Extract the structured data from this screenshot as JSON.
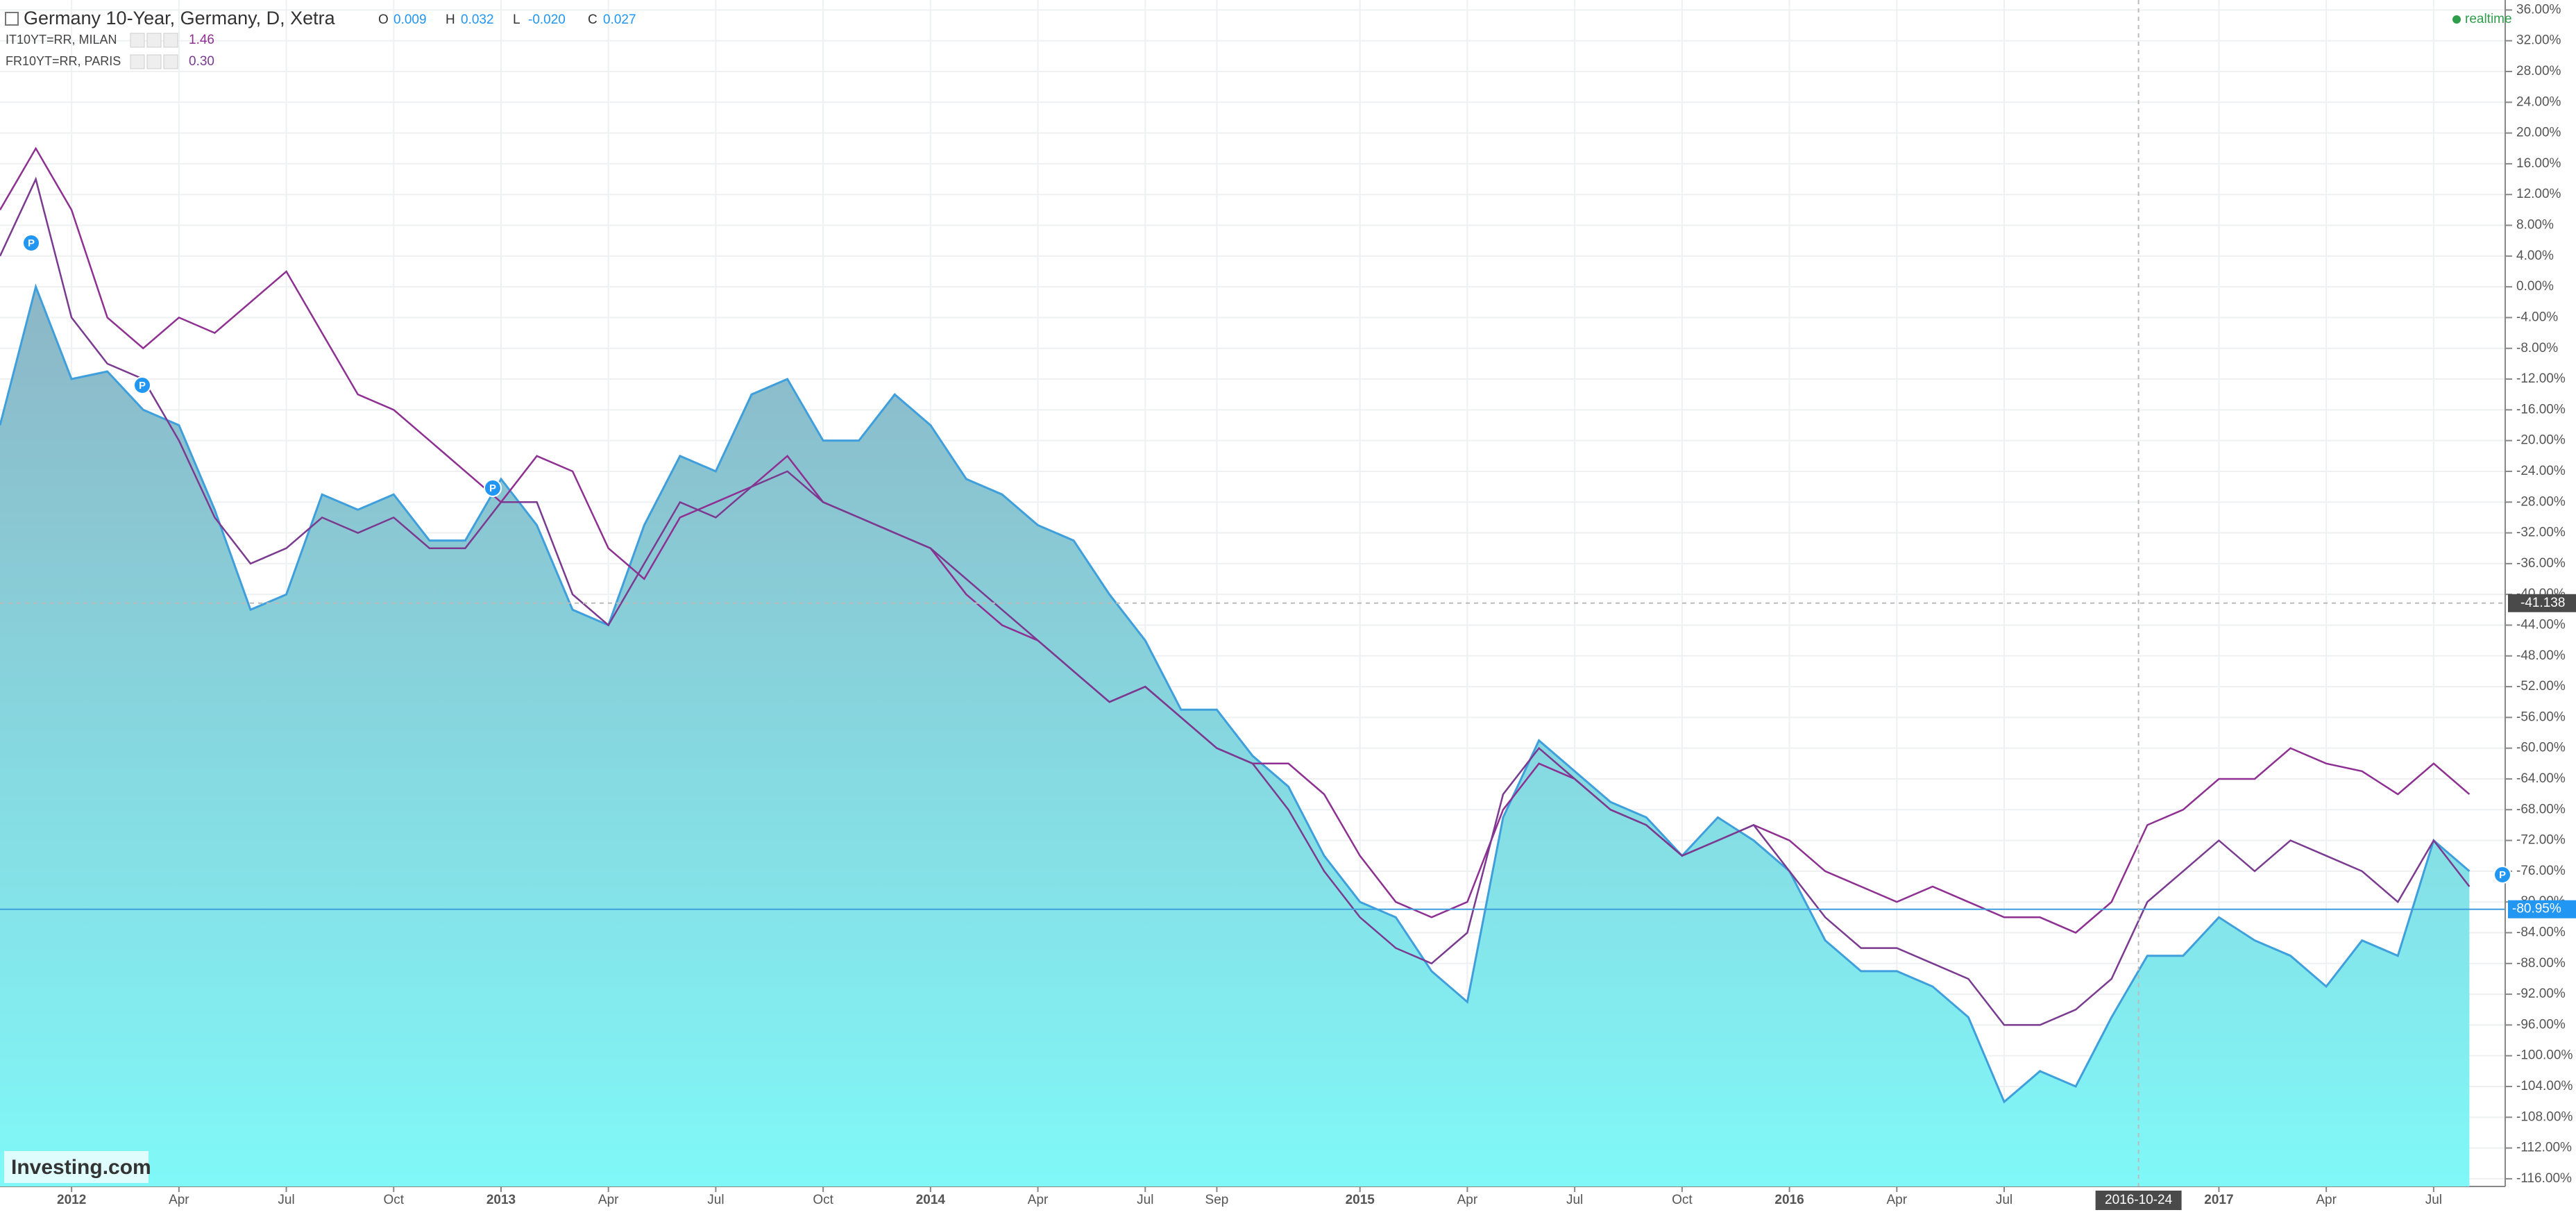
{
  "chart_data": {
    "type": "area-line",
    "header": {
      "title": "Germany 10-Year, Germany, D, Xetra",
      "ohlc": [
        {
          "label": "O",
          "value": "0.009"
        },
        {
          "label": "H",
          "value": "0.032"
        },
        {
          "label": "L",
          "value": "-0.020"
        },
        {
          "label": "C",
          "value": "0.027"
        }
      ],
      "status": "realtime"
    },
    "logo": "Investing.com",
    "event_marker_label": "P",
    "x": [
      "2011-11",
      "2011-12",
      "2012-01",
      "2012-02",
      "2012-03",
      "2012-04",
      "2012-05",
      "2012-06",
      "2012-07",
      "2012-08",
      "2012-09",
      "2012-10",
      "2012-11",
      "2012-12",
      "2013-01",
      "2013-02",
      "2013-03",
      "2013-04",
      "2013-05",
      "2013-06",
      "2013-07",
      "2013-08",
      "2013-09",
      "2013-10",
      "2013-11",
      "2013-12",
      "2014-01",
      "2014-02",
      "2014-03",
      "2014-04",
      "2014-05",
      "2014-06",
      "2014-07",
      "2014-08",
      "2014-09",
      "2014-10",
      "2014-11",
      "2014-12",
      "2015-01",
      "2015-02",
      "2015-03",
      "2015-04",
      "2015-05",
      "2015-06",
      "2015-07",
      "2015-08",
      "2015-09",
      "2015-10",
      "2015-11",
      "2015-12",
      "2016-01",
      "2016-02",
      "2016-03",
      "2016-04",
      "2016-05",
      "2016-06",
      "2016-07",
      "2016-08",
      "2016-09",
      "2016-10",
      "2016-11",
      "2016-12",
      "2017-01",
      "2017-02",
      "2017-03",
      "2017-04",
      "2017-05",
      "2017-06",
      "2017-07",
      "2017-08"
    ],
    "series": [
      {
        "name": "Germany 10-Year, Germany, D, Xetra",
        "style": "area",
        "color": "#3f9fdc",
        "fill_colors": [
          "#8db6c6",
          "#80f8f8"
        ],
        "values": [
          -18,
          0,
          -12,
          -11,
          -16,
          -18,
          -29,
          -42,
          -40,
          -27,
          -29,
          -27,
          -33,
          -33,
          -25,
          -31,
          -42,
          -44,
          -31,
          -22,
          -24,
          -14,
          -12,
          -20,
          -20,
          -14,
          -18,
          -25,
          -27,
          -31,
          -33,
          -40,
          -46,
          -55,
          -55,
          -61,
          -65,
          -74,
          -80,
          -82,
          -89,
          -93,
          -69,
          -59,
          -63,
          -67,
          -69,
          -74,
          -69,
          -72,
          -76,
          -85,
          -89,
          -89,
          -91,
          -95,
          -106,
          -102,
          -104,
          -95,
          -87,
          -87,
          -82,
          -85,
          -87,
          -91,
          -85,
          -87,
          -72,
          -76
        ]
      },
      {
        "name": "IT10YT=RR, MILAN",
        "style": "line",
        "color": "#8e2f92",
        "legend_value": "1.46",
        "values": [
          10,
          18,
          10,
          -4,
          -8,
          -4,
          -6,
          -2,
          2,
          -6,
          -14,
          -16,
          -20,
          -24,
          -28,
          -22,
          -24,
          -34,
          -38,
          -30,
          -28,
          -26,
          -22,
          -28,
          -30,
          -32,
          -34,
          -40,
          -44,
          -46,
          -50,
          -54,
          -52,
          -56,
          -60,
          -62,
          -62,
          -66,
          -74,
          -80,
          -82,
          -80,
          -68,
          -62,
          -64,
          -68,
          -70,
          -74,
          -72,
          -70,
          -72,
          -76,
          -78,
          -80,
          -78,
          -80,
          -82,
          -82,
          -84,
          -80,
          -70,
          -68,
          -64,
          -64,
          -60,
          -62,
          -63,
          -66,
          -62,
          -66
        ]
      },
      {
        "name": "FR10YT=RR, PARIS",
        "style": "line",
        "color": "#7a3a90",
        "legend_value": "0.30",
        "values": [
          4,
          14,
          -4,
          -10,
          -12,
          -20,
          -30,
          -36,
          -34,
          -30,
          -32,
          -30,
          -34,
          -34,
          -28,
          -28,
          -40,
          -44,
          -36,
          -28,
          -30,
          -26,
          -24,
          -28,
          -30,
          -32,
          -34,
          -38,
          -42,
          -46,
          -50,
          -54,
          -52,
          -56,
          -60,
          -62,
          -68,
          -76,
          -82,
          -86,
          -88,
          -84,
          -66,
          -60,
          -64,
          -68,
          -70,
          -74,
          -72,
          -70,
          -76,
          -82,
          -86,
          -86,
          -88,
          -90,
          -96,
          -96,
          -94,
          -90,
          -80,
          -76,
          -72,
          -76,
          -72,
          -74,
          -76,
          -80,
          -72,
          -78
        ]
      }
    ],
    "xlim": [
      "2011-11",
      "2017-09"
    ],
    "xticks": [
      {
        "value": "2012-01",
        "label": "2012"
      },
      {
        "value": "2012-04",
        "label": "Apr"
      },
      {
        "value": "2012-07",
        "label": "Jul"
      },
      {
        "value": "2012-10",
        "label": "Oct"
      },
      {
        "value": "2013-01",
        "label": "2013"
      },
      {
        "value": "2013-04",
        "label": "Apr"
      },
      {
        "value": "2013-07",
        "label": "Jul"
      },
      {
        "value": "2013-10",
        "label": "Oct"
      },
      {
        "value": "2014-01",
        "label": "2014"
      },
      {
        "value": "2014-04",
        "label": "Apr"
      },
      {
        "value": "2014-07",
        "label": "Jul"
      },
      {
        "value": "2014-09",
        "label": "Sep"
      },
      {
        "value": "2015-01",
        "label": "2015"
      },
      {
        "value": "2015-04",
        "label": "Apr"
      },
      {
        "value": "2015-07",
        "label": "Jul"
      },
      {
        "value": "2015-10",
        "label": "Oct"
      },
      {
        "value": "2016-01",
        "label": "2016"
      },
      {
        "value": "2016-04",
        "label": "Apr"
      },
      {
        "value": "2016-07",
        "label": "Jul"
      },
      {
        "value": "2017-01",
        "label": "2017"
      },
      {
        "value": "2017-04",
        "label": "Apr"
      },
      {
        "value": "2017-07",
        "label": "Jul"
      }
    ],
    "ylim": [
      -117,
      37.3
    ],
    "yticks": [
      {
        "value": 36,
        "label": "36.00%"
      },
      {
        "value": 32,
        "label": "32.00%"
      },
      {
        "value": 28,
        "label": "28.00%"
      },
      {
        "value": 24,
        "label": "24.00%"
      },
      {
        "value": 20,
        "label": "20.00%"
      },
      {
        "value": 16,
        "label": "16.00%"
      },
      {
        "value": 12,
        "label": "12.00%"
      },
      {
        "value": 8,
        "label": "8.00%"
      },
      {
        "value": 4,
        "label": "4.00%"
      },
      {
        "value": 0,
        "label": "0.00%"
      },
      {
        "value": -4,
        "label": "-4.00%"
      },
      {
        "value": -8,
        "label": "-8.00%"
      },
      {
        "value": -12,
        "label": "-12.00%"
      },
      {
        "value": -16,
        "label": "-16.00%"
      },
      {
        "value": -20,
        "label": "-20.00%"
      },
      {
        "value": -24,
        "label": "-24.00%"
      },
      {
        "value": -28,
        "label": "-28.00%"
      },
      {
        "value": -32,
        "label": "-32.00%"
      },
      {
        "value": -36,
        "label": "-36.00%"
      },
      {
        "value": -40,
        "label": "-40.00%"
      },
      {
        "value": -44,
        "label": "-44.00%"
      },
      {
        "value": -48,
        "label": "-48.00%"
      },
      {
        "value": -52,
        "label": "-52.00%"
      },
      {
        "value": -56,
        "label": "-56.00%"
      },
      {
        "value": -60,
        "label": "-60.00%"
      },
      {
        "value": -64,
        "label": "-64.00%"
      },
      {
        "value": -68,
        "label": "-68.00%"
      },
      {
        "value": -72,
        "label": "-72.00%"
      },
      {
        "value": -76,
        "label": "-76.00%"
      },
      {
        "value": -80,
        "label": "-80.00%"
      },
      {
        "value": -84,
        "label": "-84.00%"
      },
      {
        "value": -88,
        "label": "-88.00%"
      },
      {
        "value": -92,
        "label": "-92.00%"
      },
      {
        "value": -96,
        "label": "-96.00%"
      },
      {
        "value": -100,
        "label": "-100.00%"
      },
      {
        "value": -104,
        "label": "-104.00%"
      },
      {
        "value": -108,
        "label": "-108.00%"
      },
      {
        "value": -112,
        "label": "-112.00%"
      },
      {
        "value": -116,
        "label": "-116.00%"
      }
    ],
    "grid": true,
    "last_price": {
      "value": -80.95,
      "label": "-80.95%"
    },
    "crosshair": {
      "x": "2016-10-24",
      "y": -41.138
    }
  }
}
